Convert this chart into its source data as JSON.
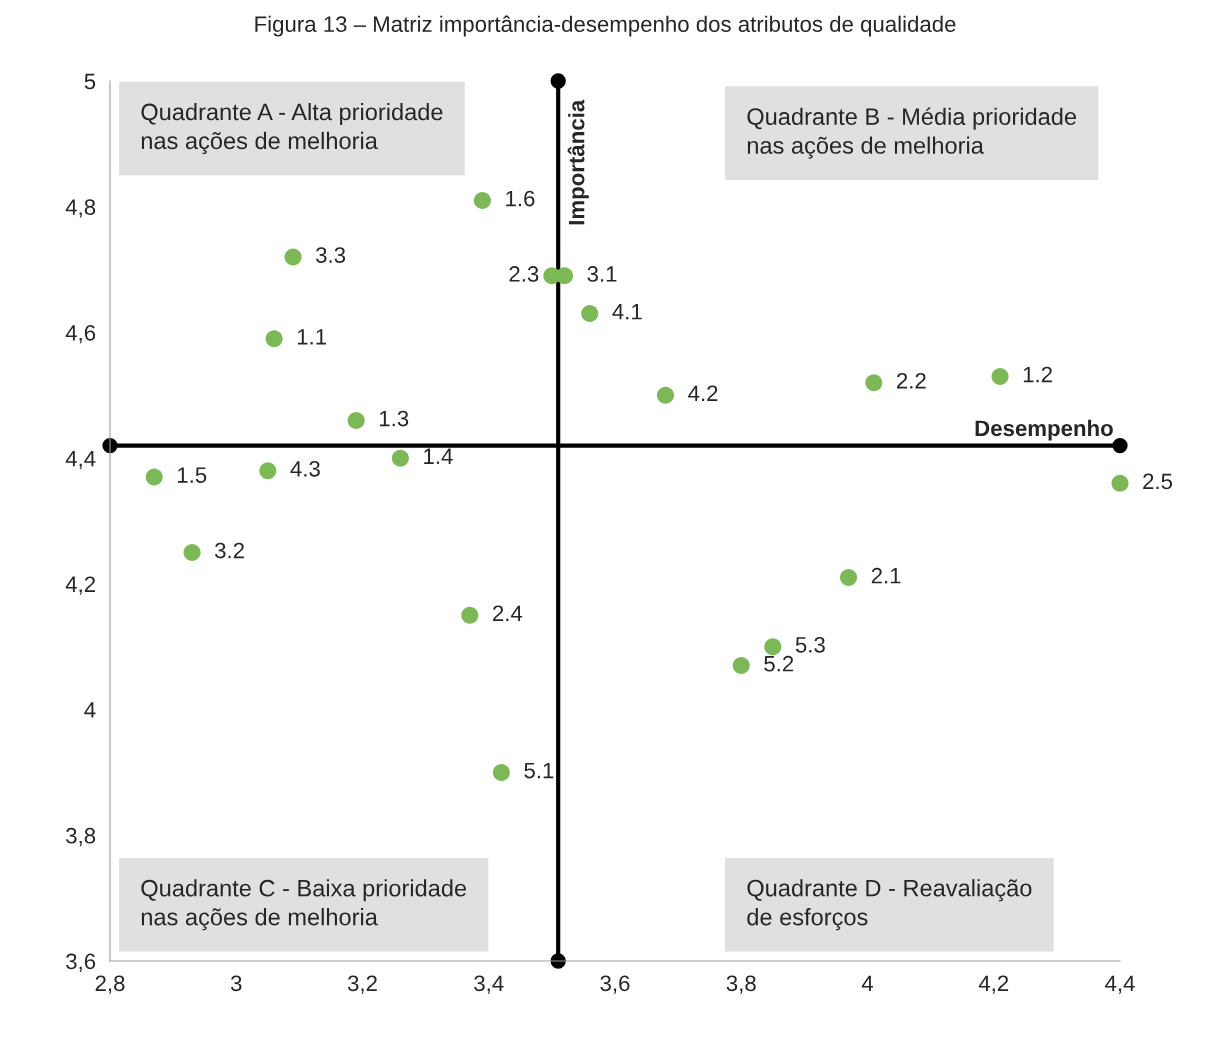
{
  "chart_data": {
    "type": "scatter",
    "title": "Figura 13 – Matriz importância-desempenho dos atributos de qualidade",
    "x": [
      3.39,
      3.09,
      3.06,
      3.5,
      3.52,
      3.56,
      3.68,
      4.01,
      4.21,
      3.19,
      3.26,
      2.87,
      3.05,
      4.4,
      2.93,
      3.37,
      3.97,
      3.85,
      3.8,
      3.42
    ],
    "series": [
      {
        "color": "#7cb956",
        "values": [
          4.81,
          4.72,
          4.59,
          4.69,
          4.69,
          4.63,
          4.5,
          4.52,
          4.53,
          4.46,
          4.4,
          4.37,
          4.38,
          4.36,
          4.25,
          4.15,
          4.21,
          4.1,
          4.07,
          3.9
        ]
      },
      {
        "type": "line",
        "name": "Importância",
        "color": "#000000",
        "x": [
          3.51,
          3.51
        ],
        "values": [
          3.6,
          5
        ]
      },
      {
        "type": "line",
        "name": "Desempenho",
        "color": "#000000",
        "x": [
          2.8,
          4.4
        ],
        "values": [
          4.42,
          4.42
        ]
      }
    ],
    "marker": "circle",
    "xlim": [
      2.8,
      4.4
    ],
    "xticks": [
      {
        "value": 2.8,
        "label": "2,8"
      },
      3,
      {
        "value": 3.2,
        "label": "3,2"
      },
      {
        "value": 3.4,
        "label": "3,4"
      },
      {
        "value": 3.6,
        "label": "3,6"
      },
      {
        "value": 3.8,
        "label": "3,8"
      },
      4,
      {
        "value": 4.2,
        "label": "4,2"
      },
      {
        "value": 4.4,
        "label": "4,4"
      }
    ],
    "ylim": [
      3.6,
      5
    ],
    "yticks": [
      {
        "value": 3.6,
        "label": "3,6"
      },
      {
        "value": 3.8,
        "label": "3,8"
      },
      4,
      {
        "value": 4.2,
        "label": "4,2"
      },
      {
        "value": 4.4,
        "label": "4,4"
      },
      {
        "value": 4.6,
        "label": "4,6"
      },
      {
        "value": 4.8,
        "label": "4,8"
      },
      5
    ],
    "annotations": [
      "Quadrante A - Alta prioridade\nnas ações de melhoria",
      "Quadrante B - Média prioridade\nnas ações de melhoria",
      "Quadrante C - Baixa prioridade\nnas ações de melhoria",
      "Quadrante D - Reavaliação\nde esforços",
      {
        "text": "1.6",
        "x": 3.39,
        "y": 4.81
      },
      {
        "text": "3.3",
        "x": 3.09,
        "y": 4.72
      },
      {
        "text": "1.1",
        "x": 3.06,
        "y": 4.59
      },
      {
        "text": "2.3",
        "x": 3.5,
        "y": 4.69
      },
      {
        "text": "3.1",
        "x": 3.52,
        "y": 4.69
      },
      {
        "text": "4.1",
        "x": 3.56,
        "y": 4.63
      },
      {
        "text": "4.2",
        "x": 3.68,
        "y": 4.5
      },
      {
        "text": "2.2",
        "x": 4.01,
        "y": 4.52
      },
      {
        "text": "1.2",
        "x": 4.21,
        "y": 4.53
      },
      {
        "text": "1.3",
        "x": 3.19,
        "y": 4.46
      },
      {
        "text": "1.4",
        "x": 3.26,
        "y": 4.4
      },
      {
        "text": "1.5",
        "x": 2.87,
        "y": 4.37
      },
      {
        "text": "4.3",
        "x": 3.05,
        "y": 4.38
      },
      {
        "text": "2.5",
        "x": 4.4,
        "y": 4.36
      },
      {
        "text": "3.2",
        "x": 2.93,
        "y": 4.25
      },
      {
        "text": "2.4",
        "x": 3.37,
        "y": 4.15
      },
      {
        "text": "2.1",
        "x": 3.97,
        "y": 4.21
      },
      {
        "text": "5.3",
        "x": 3.85,
        "y": 4.1
      },
      {
        "text": "5.2",
        "x": 3.8,
        "y": 4.07
      },
      {
        "text": "5.1",
        "x": 3.42,
        "y": 3.9
      }
    ],
    "grid": false,
    "legend": false
  }
}
